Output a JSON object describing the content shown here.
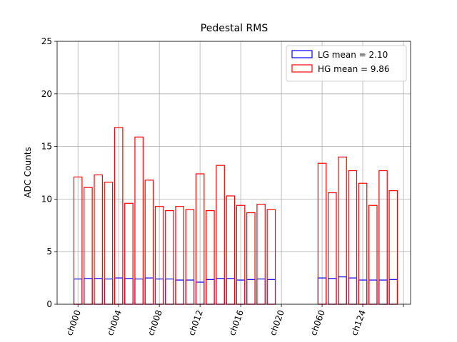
{
  "chart_data": {
    "type": "bar",
    "title": "Pedestal RMS",
    "y_label": "ADC Counts",
    "x": [
      0,
      1,
      2,
      3,
      4,
      5,
      6,
      7,
      8,
      9,
      10,
      11,
      12,
      13,
      14,
      15,
      16,
      17,
      18,
      19,
      20,
      21,
      22,
      23,
      24,
      25,
      26,
      27,
      28,
      29,
      30,
      31
    ],
    "series": [
      {
        "name": "LG mean = 2.10",
        "color": "#0000ff",
        "values": [
          2.4,
          2.45,
          2.45,
          2.4,
          2.5,
          2.45,
          2.4,
          2.5,
          2.4,
          2.4,
          2.3,
          2.3,
          2.1,
          2.35,
          2.45,
          2.45,
          2.3,
          2.35,
          2.4,
          2.35,
          0,
          0,
          0,
          0,
          2.5,
          2.45,
          2.6,
          2.5,
          2.3,
          2.3,
          2.3,
          2.35
        ]
      },
      {
        "name": "HG mean = 9.86",
        "color": "#ff0000",
        "values": [
          12.1,
          11.1,
          12.3,
          11.6,
          16.8,
          9.6,
          15.9,
          11.8,
          9.3,
          8.9,
          9.3,
          9.0,
          12.4,
          8.9,
          13.2,
          10.3,
          9.4,
          8.7,
          9.5,
          9.0,
          0,
          0,
          0,
          0,
          13.4,
          10.6,
          14.0,
          12.7,
          11.5,
          9.4,
          12.7,
          10.8
        ]
      }
    ],
    "xlim": [
      -2.05,
      32.7
    ],
    "xticks": [
      {
        "value": 0,
        "label": "ch000"
      },
      {
        "value": 4,
        "label": "ch004"
      },
      {
        "value": 8,
        "label": "ch008"
      },
      {
        "value": 12,
        "label": "ch012"
      },
      {
        "value": 16,
        "label": "ch016"
      },
      {
        "value": 20,
        "label": "ch020"
      },
      {
        "value": 24,
        "label": "ch060"
      },
      {
        "value": 28,
        "label": "ch124"
      },
      {
        "value": 32,
        "label": null
      }
    ],
    "ylim": [
      0,
      25
    ],
    "yticks": [
      0,
      5,
      10,
      15,
      20,
      25
    ],
    "grid": true,
    "legend": "upper-right"
  }
}
